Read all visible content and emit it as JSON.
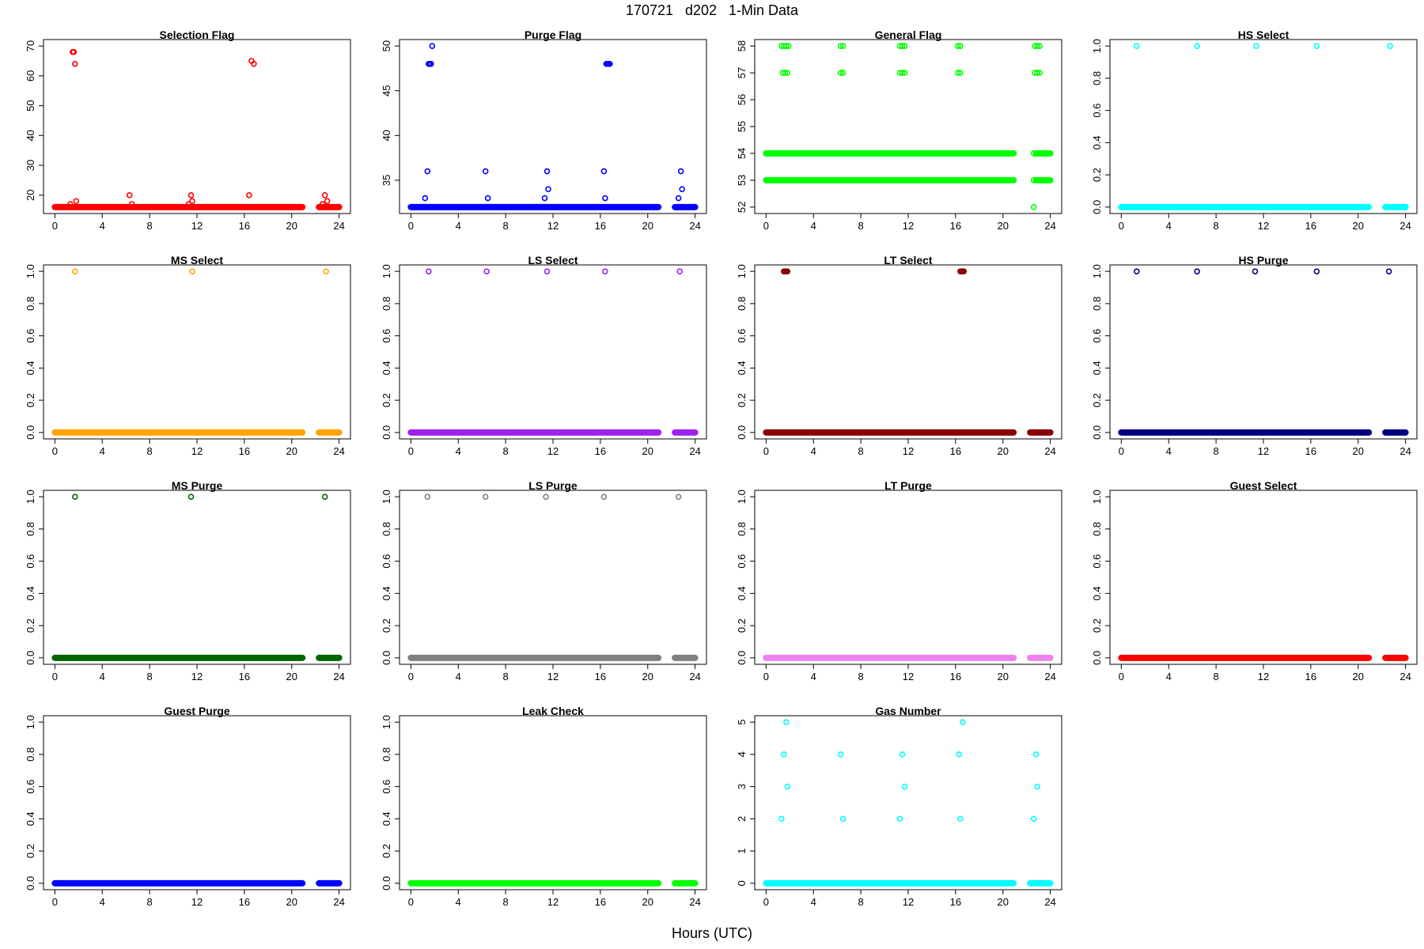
{
  "page": {
    "title": "170721   d202   1-Min Data",
    "xlabel": "Hours (UTC)"
  },
  "chart_data": [
    {
      "type": "scatter",
      "title": "Selection Flag",
      "color": "#ff0000",
      "xlim": [
        0,
        24
      ],
      "ylim": [
        16,
        70
      ],
      "xticks": [
        0,
        4,
        8,
        12,
        16,
        20,
        24
      ],
      "yticks": [
        20,
        30,
        40,
        50,
        60,
        70
      ],
      "baseline": {
        "y": 16,
        "segments": [
          [
            0,
            20.9
          ],
          [
            22.3,
            24
          ]
        ]
      },
      "points": [
        [
          1.3,
          17
        ],
        [
          1.5,
          68
        ],
        [
          1.6,
          68
        ],
        [
          1.7,
          64
        ],
        [
          1.8,
          18
        ],
        [
          6.3,
          20
        ],
        [
          6.5,
          17
        ],
        [
          11.3,
          17
        ],
        [
          11.5,
          20
        ],
        [
          11.6,
          18
        ],
        [
          16.4,
          20
        ],
        [
          16.6,
          65
        ],
        [
          16.8,
          64
        ],
        [
          22.6,
          17
        ],
        [
          22.8,
          20
        ],
        [
          23.0,
          18
        ]
      ]
    },
    {
      "type": "scatter",
      "title": "Purge Flag",
      "color": "#0000ff",
      "xlim": [
        0,
        24
      ],
      "ylim": [
        32,
        50
      ],
      "xticks": [
        0,
        4,
        8,
        12,
        16,
        20,
        24
      ],
      "yticks": [
        35,
        40,
        45,
        50
      ],
      "baseline": {
        "y": 32,
        "segments": [
          [
            0,
            20.9
          ],
          [
            22.3,
            24
          ]
        ]
      },
      "points": [
        [
          1.2,
          33
        ],
        [
          1.4,
          36
        ],
        [
          1.5,
          48
        ],
        [
          1.6,
          48
        ],
        [
          1.7,
          48
        ],
        [
          1.8,
          50
        ],
        [
          6.3,
          36
        ],
        [
          6.5,
          33
        ],
        [
          11.3,
          33
        ],
        [
          11.5,
          36
        ],
        [
          11.6,
          34
        ],
        [
          16.3,
          36
        ],
        [
          16.4,
          33
        ],
        [
          16.5,
          48
        ],
        [
          16.6,
          48
        ],
        [
          16.7,
          48
        ],
        [
          16.8,
          48
        ],
        [
          22.6,
          33
        ],
        [
          22.8,
          36
        ],
        [
          22.9,
          34
        ]
      ]
    },
    {
      "type": "scatter",
      "title": "General Flag",
      "color": "#00ff00",
      "xlim": [
        0,
        24
      ],
      "ylim": [
        52,
        58
      ],
      "xticks": [
        0,
        4,
        8,
        12,
        16,
        20,
        24
      ],
      "yticks": [
        52,
        53,
        54,
        55,
        56,
        57,
        58
      ],
      "lines": [
        {
          "y": 53,
          "segments": [
            [
              0,
              20.9
            ],
            [
              22.8,
              24
            ]
          ]
        },
        {
          "y": 54,
          "segments": [
            [
              0,
              20.9
            ],
            [
              22.8,
              24
            ]
          ]
        }
      ],
      "points": [
        [
          1.3,
          58
        ],
        [
          1.5,
          58
        ],
        [
          1.7,
          58
        ],
        [
          1.9,
          58
        ],
        [
          1.4,
          57
        ],
        [
          1.6,
          57
        ],
        [
          1.8,
          57
        ],
        [
          6.3,
          58
        ],
        [
          6.5,
          58
        ],
        [
          6.3,
          57
        ],
        [
          6.5,
          57
        ],
        [
          11.3,
          58
        ],
        [
          11.5,
          58
        ],
        [
          11.7,
          58
        ],
        [
          11.3,
          57
        ],
        [
          11.5,
          57
        ],
        [
          11.7,
          57
        ],
        [
          16.2,
          58
        ],
        [
          16.4,
          58
        ],
        [
          16.2,
          57
        ],
        [
          16.4,
          57
        ],
        [
          22.6,
          52
        ],
        [
          22.6,
          53
        ],
        [
          22.6,
          54
        ],
        [
          22.7,
          58
        ],
        [
          22.9,
          58
        ],
        [
          23.1,
          58
        ],
        [
          22.7,
          57
        ],
        [
          22.9,
          57
        ],
        [
          23.1,
          57
        ]
      ]
    },
    {
      "type": "scatter",
      "title": "HS Select",
      "color": "#00ffff",
      "xlim": [
        0,
        24
      ],
      "ylim": [
        0,
        1
      ],
      "xticks": [
        0,
        4,
        8,
        12,
        16,
        20,
        24
      ],
      "yticks": [
        0.0,
        0.2,
        0.4,
        0.6,
        0.8,
        1.0
      ],
      "baseline": {
        "y": 0,
        "segments": [
          [
            0,
            20.9
          ],
          [
            22.3,
            24
          ]
        ]
      },
      "points": [
        [
          1.3,
          1
        ],
        [
          6.4,
          1
        ],
        [
          11.4,
          1
        ],
        [
          16.5,
          1
        ],
        [
          22.7,
          1
        ]
      ]
    },
    {
      "type": "scatter",
      "title": "MS Select",
      "color": "#ffa500",
      "xlim": [
        0,
        24
      ],
      "ylim": [
        0,
        1
      ],
      "xticks": [
        0,
        4,
        8,
        12,
        16,
        20,
        24
      ],
      "yticks": [
        0.0,
        0.2,
        0.4,
        0.6,
        0.8,
        1.0
      ],
      "baseline": {
        "y": 0,
        "segments": [
          [
            0,
            20.9
          ],
          [
            22.3,
            24
          ]
        ]
      },
      "points": [
        [
          1.7,
          1
        ],
        [
          11.6,
          1
        ],
        [
          22.9,
          1
        ]
      ]
    },
    {
      "type": "scatter",
      "title": "LS Select",
      "color": "#a020f0",
      "xlim": [
        0,
        24
      ],
      "ylim": [
        0,
        1
      ],
      "xticks": [
        0,
        4,
        8,
        12,
        16,
        20,
        24
      ],
      "yticks": [
        0.0,
        0.2,
        0.4,
        0.6,
        0.8,
        1.0
      ],
      "baseline": {
        "y": 0,
        "segments": [
          [
            0,
            20.9
          ],
          [
            22.3,
            24
          ]
        ]
      },
      "points": [
        [
          1.5,
          1
        ],
        [
          6.4,
          1
        ],
        [
          11.5,
          1
        ],
        [
          16.4,
          1
        ],
        [
          22.7,
          1
        ]
      ]
    },
    {
      "type": "scatter",
      "title": "LT Select",
      "color": "#8b0000",
      "xlim": [
        0,
        24
      ],
      "ylim": [
        0,
        1
      ],
      "xticks": [
        0,
        4,
        8,
        12,
        16,
        20,
        24
      ],
      "yticks": [
        0.0,
        0.2,
        0.4,
        0.6,
        0.8,
        1.0
      ],
      "baseline": {
        "y": 0,
        "segments": [
          [
            0,
            20.9
          ],
          [
            22.3,
            24
          ]
        ]
      },
      "points": [
        [
          1.5,
          1
        ],
        [
          1.6,
          1
        ],
        [
          1.7,
          1
        ],
        [
          1.8,
          1
        ],
        [
          16.4,
          1
        ],
        [
          16.5,
          1
        ],
        [
          16.6,
          1
        ],
        [
          16.7,
          1
        ]
      ]
    },
    {
      "type": "scatter",
      "title": "HS Purge",
      "color": "#000080",
      "xlim": [
        0,
        24
      ],
      "ylim": [
        0,
        1
      ],
      "xticks": [
        0,
        4,
        8,
        12,
        16,
        20,
        24
      ],
      "yticks": [
        0.0,
        0.2,
        0.4,
        0.6,
        0.8,
        1.0
      ],
      "baseline": {
        "y": 0,
        "segments": [
          [
            0,
            20.9
          ],
          [
            22.3,
            24
          ]
        ]
      },
      "points": [
        [
          1.3,
          1
        ],
        [
          6.4,
          1
        ],
        [
          11.3,
          1
        ],
        [
          16.5,
          1
        ],
        [
          22.6,
          1
        ]
      ]
    },
    {
      "type": "scatter",
      "title": "MS Purge",
      "color": "#006400",
      "xlim": [
        0,
        24
      ],
      "ylim": [
        0,
        1
      ],
      "xticks": [
        0,
        4,
        8,
        12,
        16,
        20,
        24
      ],
      "yticks": [
        0.0,
        0.2,
        0.4,
        0.6,
        0.8,
        1.0
      ],
      "baseline": {
        "y": 0,
        "segments": [
          [
            0,
            20.9
          ],
          [
            22.3,
            24
          ]
        ]
      },
      "points": [
        [
          1.7,
          1
        ],
        [
          11.5,
          1
        ],
        [
          22.8,
          1
        ]
      ]
    },
    {
      "type": "scatter",
      "title": "LS Purge",
      "color": "#808080",
      "xlim": [
        0,
        24
      ],
      "ylim": [
        0,
        1
      ],
      "xticks": [
        0,
        4,
        8,
        12,
        16,
        20,
        24
      ],
      "yticks": [
        0.0,
        0.2,
        0.4,
        0.6,
        0.8,
        1.0
      ],
      "baseline": {
        "y": 0,
        "segments": [
          [
            0,
            20.9
          ],
          [
            22.3,
            24
          ]
        ]
      },
      "points": [
        [
          1.4,
          1
        ],
        [
          6.3,
          1
        ],
        [
          11.4,
          1
        ],
        [
          16.3,
          1
        ],
        [
          22.6,
          1
        ]
      ]
    },
    {
      "type": "scatter",
      "title": "LT Purge",
      "color": "#ee82ee",
      "xlim": [
        0,
        24
      ],
      "ylim": [
        0,
        1
      ],
      "xticks": [
        0,
        4,
        8,
        12,
        16,
        20,
        24
      ],
      "yticks": [
        0.0,
        0.2,
        0.4,
        0.6,
        0.8,
        1.0
      ],
      "baseline": {
        "y": 0,
        "segments": [
          [
            0,
            20.9
          ],
          [
            22.3,
            24
          ]
        ]
      },
      "points": []
    },
    {
      "type": "scatter",
      "title": "Guest Select",
      "color": "#ff0000",
      "xlim": [
        0,
        24
      ],
      "ylim": [
        0,
        1
      ],
      "xticks": [
        0,
        4,
        8,
        12,
        16,
        20,
        24
      ],
      "yticks": [
        0.0,
        0.2,
        0.4,
        0.6,
        0.8,
        1.0
      ],
      "baseline": {
        "y": 0,
        "segments": [
          [
            0,
            20.9
          ],
          [
            22.3,
            24
          ]
        ]
      },
      "points": []
    },
    {
      "type": "scatter",
      "title": "Guest Purge",
      "color": "#0000ff",
      "xlim": [
        0,
        24
      ],
      "ylim": [
        0,
        1
      ],
      "xticks": [
        0,
        4,
        8,
        12,
        16,
        20,
        24
      ],
      "yticks": [
        0.0,
        0.2,
        0.4,
        0.6,
        0.8,
        1.0
      ],
      "baseline": {
        "y": 0,
        "segments": [
          [
            0,
            20.9
          ],
          [
            22.3,
            24
          ]
        ]
      },
      "points": []
    },
    {
      "type": "scatter",
      "title": "Leak Check",
      "color": "#00ff00",
      "xlim": [
        0,
        24
      ],
      "ylim": [
        0,
        1
      ],
      "xticks": [
        0,
        4,
        8,
        12,
        16,
        20,
        24
      ],
      "yticks": [
        0.0,
        0.2,
        0.4,
        0.6,
        0.8,
        1.0
      ],
      "baseline": {
        "y": 0,
        "segments": [
          [
            0,
            20.9
          ],
          [
            22.3,
            24
          ]
        ]
      },
      "points": []
    },
    {
      "type": "scatter",
      "title": "Gas Number",
      "color": "#00ffff",
      "xlim": [
        0,
        24
      ],
      "ylim": [
        0,
        5
      ],
      "xticks": [
        0,
        4,
        8,
        12,
        16,
        20,
        24
      ],
      "yticks": [
        0,
        1,
        2,
        3,
        4,
        5
      ],
      "baseline": {
        "y": 0,
        "segments": [
          [
            0,
            20.9
          ],
          [
            22.3,
            24
          ]
        ]
      },
      "points": [
        [
          1.3,
          2
        ],
        [
          1.5,
          4
        ],
        [
          1.7,
          5
        ],
        [
          1.8,
          3
        ],
        [
          6.3,
          4
        ],
        [
          6.5,
          2
        ],
        [
          11.3,
          2
        ],
        [
          11.5,
          4
        ],
        [
          11.7,
          3
        ],
        [
          16.3,
          4
        ],
        [
          16.4,
          2
        ],
        [
          16.6,
          5
        ],
        [
          22.6,
          2
        ],
        [
          22.8,
          4
        ],
        [
          22.9,
          3
        ]
      ]
    }
  ]
}
